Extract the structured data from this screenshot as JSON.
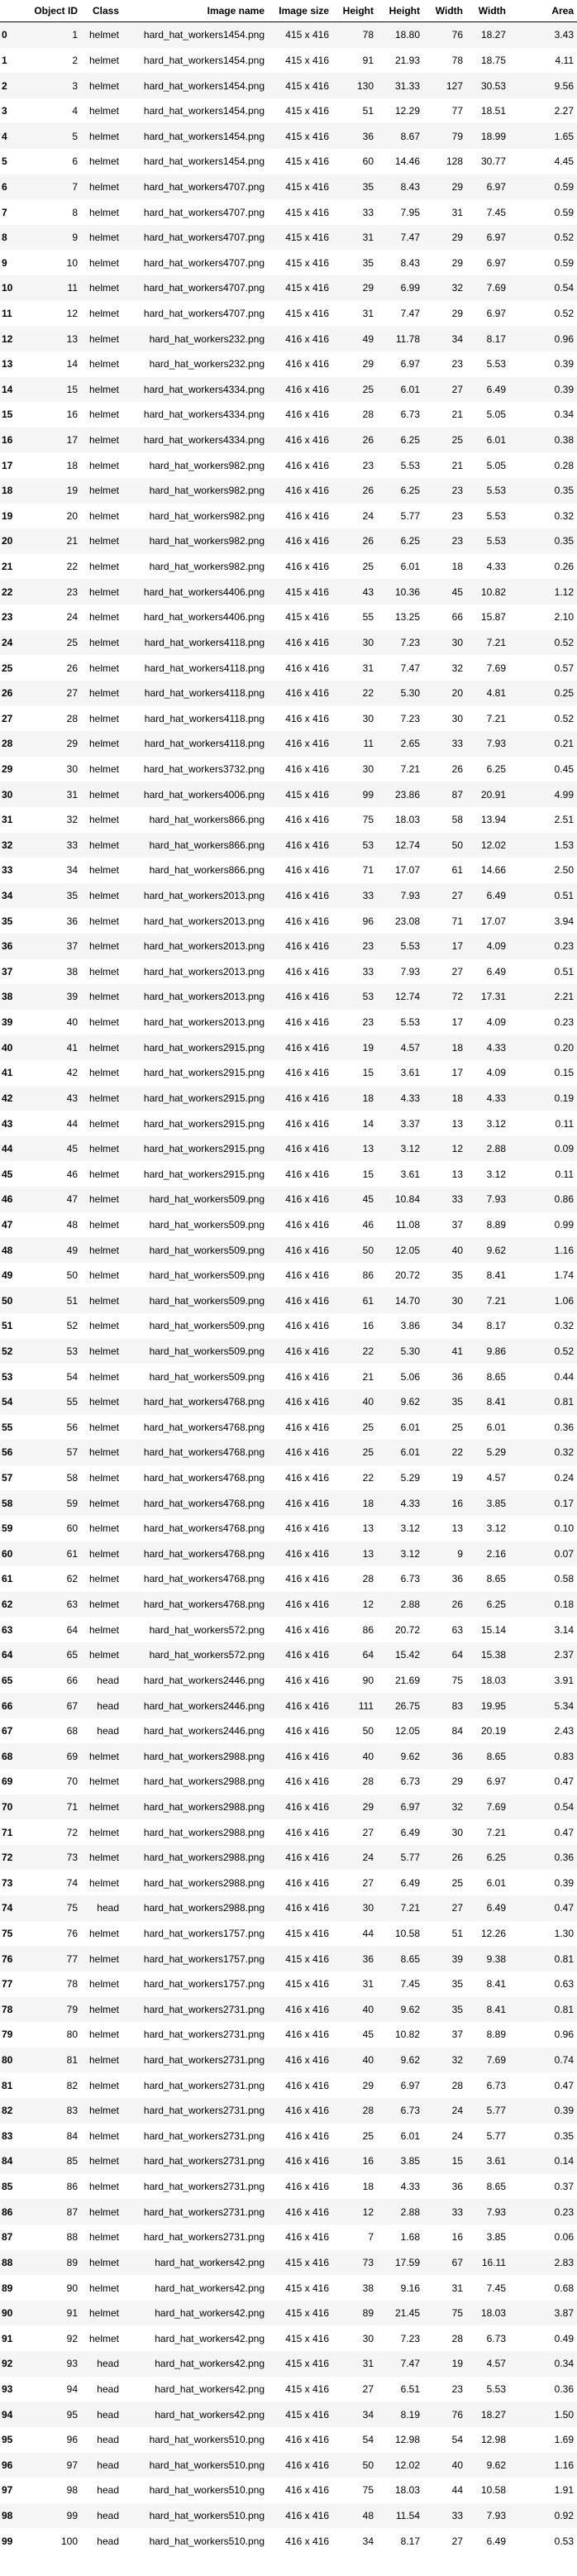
{
  "columns": [
    "",
    "Object ID",
    "Class",
    "Image name",
    "Image size",
    "Height",
    "Height",
    "Width",
    "Width",
    "Area"
  ],
  "rows": [
    [
      "0",
      "1",
      "helmet",
      "hard_hat_workers1454.png",
      "415 x 416",
      "78",
      "18.80",
      "76",
      "18.27",
      "3.43"
    ],
    [
      "1",
      "2",
      "helmet",
      "hard_hat_workers1454.png",
      "415 x 416",
      "91",
      "21.93",
      "78",
      "18.75",
      "4.11"
    ],
    [
      "2",
      "3",
      "helmet",
      "hard_hat_workers1454.png",
      "415 x 416",
      "130",
      "31.33",
      "127",
      "30.53",
      "9.56"
    ],
    [
      "3",
      "4",
      "helmet",
      "hard_hat_workers1454.png",
      "415 x 416",
      "51",
      "12.29",
      "77",
      "18.51",
      "2.27"
    ],
    [
      "4",
      "5",
      "helmet",
      "hard_hat_workers1454.png",
      "415 x 416",
      "36",
      "8.67",
      "79",
      "18.99",
      "1.65"
    ],
    [
      "5",
      "6",
      "helmet",
      "hard_hat_workers1454.png",
      "415 x 416",
      "60",
      "14.46",
      "128",
      "30.77",
      "4.45"
    ],
    [
      "6",
      "7",
      "helmet",
      "hard_hat_workers4707.png",
      "415 x 416",
      "35",
      "8.43",
      "29",
      "6.97",
      "0.59"
    ],
    [
      "7",
      "8",
      "helmet",
      "hard_hat_workers4707.png",
      "415 x 416",
      "33",
      "7.95",
      "31",
      "7.45",
      "0.59"
    ],
    [
      "8",
      "9",
      "helmet",
      "hard_hat_workers4707.png",
      "415 x 416",
      "31",
      "7.47",
      "29",
      "6.97",
      "0.52"
    ],
    [
      "9",
      "10",
      "helmet",
      "hard_hat_workers4707.png",
      "415 x 416",
      "35",
      "8.43",
      "29",
      "6.97",
      "0.59"
    ],
    [
      "10",
      "11",
      "helmet",
      "hard_hat_workers4707.png",
      "415 x 416",
      "29",
      "6.99",
      "32",
      "7.69",
      "0.54"
    ],
    [
      "11",
      "12",
      "helmet",
      "hard_hat_workers4707.png",
      "415 x 416",
      "31",
      "7.47",
      "29",
      "6.97",
      "0.52"
    ],
    [
      "12",
      "13",
      "helmet",
      "hard_hat_workers232.png",
      "416 x 416",
      "49",
      "11.78",
      "34",
      "8.17",
      "0.96"
    ],
    [
      "13",
      "14",
      "helmet",
      "hard_hat_workers232.png",
      "416 x 416",
      "29",
      "6.97",
      "23",
      "5.53",
      "0.39"
    ],
    [
      "14",
      "15",
      "helmet",
      "hard_hat_workers4334.png",
      "416 x 416",
      "25",
      "6.01",
      "27",
      "6.49",
      "0.39"
    ],
    [
      "15",
      "16",
      "helmet",
      "hard_hat_workers4334.png",
      "416 x 416",
      "28",
      "6.73",
      "21",
      "5.05",
      "0.34"
    ],
    [
      "16",
      "17",
      "helmet",
      "hard_hat_workers4334.png",
      "416 x 416",
      "26",
      "6.25",
      "25",
      "6.01",
      "0.38"
    ],
    [
      "17",
      "18",
      "helmet",
      "hard_hat_workers982.png",
      "416 x 416",
      "23",
      "5.53",
      "21",
      "5.05",
      "0.28"
    ],
    [
      "18",
      "19",
      "helmet",
      "hard_hat_workers982.png",
      "416 x 416",
      "26",
      "6.25",
      "23",
      "5.53",
      "0.35"
    ],
    [
      "19",
      "20",
      "helmet",
      "hard_hat_workers982.png",
      "416 x 416",
      "24",
      "5.77",
      "23",
      "5.53",
      "0.32"
    ],
    [
      "20",
      "21",
      "helmet",
      "hard_hat_workers982.png",
      "416 x 416",
      "26",
      "6.25",
      "23",
      "5.53",
      "0.35"
    ],
    [
      "21",
      "22",
      "helmet",
      "hard_hat_workers982.png",
      "416 x 416",
      "25",
      "6.01",
      "18",
      "4.33",
      "0.26"
    ],
    [
      "22",
      "23",
      "helmet",
      "hard_hat_workers4406.png",
      "415 x 416",
      "43",
      "10.36",
      "45",
      "10.82",
      "1.12"
    ],
    [
      "23",
      "24",
      "helmet",
      "hard_hat_workers4406.png",
      "415 x 416",
      "55",
      "13.25",
      "66",
      "15.87",
      "2.10"
    ],
    [
      "24",
      "25",
      "helmet",
      "hard_hat_workers4118.png",
      "416 x 416",
      "30",
      "7.23",
      "30",
      "7.21",
      "0.52"
    ],
    [
      "25",
      "26",
      "helmet",
      "hard_hat_workers4118.png",
      "416 x 416",
      "31",
      "7.47",
      "32",
      "7.69",
      "0.57"
    ],
    [
      "26",
      "27",
      "helmet",
      "hard_hat_workers4118.png",
      "416 x 416",
      "22",
      "5.30",
      "20",
      "4.81",
      "0.25"
    ],
    [
      "27",
      "28",
      "helmet",
      "hard_hat_workers4118.png",
      "416 x 416",
      "30",
      "7.23",
      "30",
      "7.21",
      "0.52"
    ],
    [
      "28",
      "29",
      "helmet",
      "hard_hat_workers4118.png",
      "416 x 416",
      "11",
      "2.65",
      "33",
      "7.93",
      "0.21"
    ],
    [
      "29",
      "30",
      "helmet",
      "hard_hat_workers3732.png",
      "416 x 416",
      "30",
      "7.21",
      "26",
      "6.25",
      "0.45"
    ],
    [
      "30",
      "31",
      "helmet",
      "hard_hat_workers4006.png",
      "415 x 416",
      "99",
      "23.86",
      "87",
      "20.91",
      "4.99"
    ],
    [
      "31",
      "32",
      "helmet",
      "hard_hat_workers866.png",
      "416 x 416",
      "75",
      "18.03",
      "58",
      "13.94",
      "2.51"
    ],
    [
      "32",
      "33",
      "helmet",
      "hard_hat_workers866.png",
      "416 x 416",
      "53",
      "12.74",
      "50",
      "12.02",
      "1.53"
    ],
    [
      "33",
      "34",
      "helmet",
      "hard_hat_workers866.png",
      "416 x 416",
      "71",
      "17.07",
      "61",
      "14.66",
      "2.50"
    ],
    [
      "34",
      "35",
      "helmet",
      "hard_hat_workers2013.png",
      "416 x 416",
      "33",
      "7.93",
      "27",
      "6.49",
      "0.51"
    ],
    [
      "35",
      "36",
      "helmet",
      "hard_hat_workers2013.png",
      "416 x 416",
      "96",
      "23.08",
      "71",
      "17.07",
      "3.94"
    ],
    [
      "36",
      "37",
      "helmet",
      "hard_hat_workers2013.png",
      "416 x 416",
      "23",
      "5.53",
      "17",
      "4.09",
      "0.23"
    ],
    [
      "37",
      "38",
      "helmet",
      "hard_hat_workers2013.png",
      "416 x 416",
      "33",
      "7.93",
      "27",
      "6.49",
      "0.51"
    ],
    [
      "38",
      "39",
      "helmet",
      "hard_hat_workers2013.png",
      "416 x 416",
      "53",
      "12.74",
      "72",
      "17.31",
      "2.21"
    ],
    [
      "39",
      "40",
      "helmet",
      "hard_hat_workers2013.png",
      "416 x 416",
      "23",
      "5.53",
      "17",
      "4.09",
      "0.23"
    ],
    [
      "40",
      "41",
      "helmet",
      "hard_hat_workers2915.png",
      "416 x 416",
      "19",
      "4.57",
      "18",
      "4.33",
      "0.20"
    ],
    [
      "41",
      "42",
      "helmet",
      "hard_hat_workers2915.png",
      "416 x 416",
      "15",
      "3.61",
      "17",
      "4.09",
      "0.15"
    ],
    [
      "42",
      "43",
      "helmet",
      "hard_hat_workers2915.png",
      "416 x 416",
      "18",
      "4.33",
      "18",
      "4.33",
      "0.19"
    ],
    [
      "43",
      "44",
      "helmet",
      "hard_hat_workers2915.png",
      "416 x 416",
      "14",
      "3.37",
      "13",
      "3.12",
      "0.11"
    ],
    [
      "44",
      "45",
      "helmet",
      "hard_hat_workers2915.png",
      "416 x 416",
      "13",
      "3.12",
      "12",
      "2.88",
      "0.09"
    ],
    [
      "45",
      "46",
      "helmet",
      "hard_hat_workers2915.png",
      "416 x 416",
      "15",
      "3.61",
      "13",
      "3.12",
      "0.11"
    ],
    [
      "46",
      "47",
      "helmet",
      "hard_hat_workers509.png",
      "416 x 416",
      "45",
      "10.84",
      "33",
      "7.93",
      "0.86"
    ],
    [
      "47",
      "48",
      "helmet",
      "hard_hat_workers509.png",
      "416 x 416",
      "46",
      "11.08",
      "37",
      "8.89",
      "0.99"
    ],
    [
      "48",
      "49",
      "helmet",
      "hard_hat_workers509.png",
      "416 x 416",
      "50",
      "12.05",
      "40",
      "9.62",
      "1.16"
    ],
    [
      "49",
      "50",
      "helmet",
      "hard_hat_workers509.png",
      "416 x 416",
      "86",
      "20.72",
      "35",
      "8.41",
      "1.74"
    ],
    [
      "50",
      "51",
      "helmet",
      "hard_hat_workers509.png",
      "416 x 416",
      "61",
      "14.70",
      "30",
      "7.21",
      "1.06"
    ],
    [
      "51",
      "52",
      "helmet",
      "hard_hat_workers509.png",
      "416 x 416",
      "16",
      "3.86",
      "34",
      "8.17",
      "0.32"
    ],
    [
      "52",
      "53",
      "helmet",
      "hard_hat_workers509.png",
      "416 x 416",
      "22",
      "5.30",
      "41",
      "9.86",
      "0.52"
    ],
    [
      "53",
      "54",
      "helmet",
      "hard_hat_workers509.png",
      "416 x 416",
      "21",
      "5.06",
      "36",
      "8.65",
      "0.44"
    ],
    [
      "54",
      "55",
      "helmet",
      "hard_hat_workers4768.png",
      "416 x 416",
      "40",
      "9.62",
      "35",
      "8.41",
      "0.81"
    ],
    [
      "55",
      "56",
      "helmet",
      "hard_hat_workers4768.png",
      "416 x 416",
      "25",
      "6.01",
      "25",
      "6.01",
      "0.36"
    ],
    [
      "56",
      "57",
      "helmet",
      "hard_hat_workers4768.png",
      "416 x 416",
      "25",
      "6.01",
      "22",
      "5.29",
      "0.32"
    ],
    [
      "57",
      "58",
      "helmet",
      "hard_hat_workers4768.png",
      "416 x 416",
      "22",
      "5.29",
      "19",
      "4.57",
      "0.24"
    ],
    [
      "58",
      "59",
      "helmet",
      "hard_hat_workers4768.png",
      "416 x 416",
      "18",
      "4.33",
      "16",
      "3.85",
      "0.17"
    ],
    [
      "59",
      "60",
      "helmet",
      "hard_hat_workers4768.png",
      "416 x 416",
      "13",
      "3.12",
      "13",
      "3.12",
      "0.10"
    ],
    [
      "60",
      "61",
      "helmet",
      "hard_hat_workers4768.png",
      "416 x 416",
      "13",
      "3.12",
      "9",
      "2.16",
      "0.07"
    ],
    [
      "61",
      "62",
      "helmet",
      "hard_hat_workers4768.png",
      "416 x 416",
      "28",
      "6.73",
      "36",
      "8.65",
      "0.58"
    ],
    [
      "62",
      "63",
      "helmet",
      "hard_hat_workers4768.png",
      "416 x 416",
      "12",
      "2.88",
      "26",
      "6.25",
      "0.18"
    ],
    [
      "63",
      "64",
      "helmet",
      "hard_hat_workers572.png",
      "416 x 416",
      "86",
      "20.72",
      "63",
      "15.14",
      "3.14"
    ],
    [
      "64",
      "65",
      "helmet",
      "hard_hat_workers572.png",
      "416 x 416",
      "64",
      "15.42",
      "64",
      "15.38",
      "2.37"
    ],
    [
      "65",
      "66",
      "head",
      "hard_hat_workers2446.png",
      "416 x 416",
      "90",
      "21.69",
      "75",
      "18.03",
      "3.91"
    ],
    [
      "66",
      "67",
      "head",
      "hard_hat_workers2446.png",
      "416 x 416",
      "111",
      "26.75",
      "83",
      "19.95",
      "5.34"
    ],
    [
      "67",
      "68",
      "head",
      "hard_hat_workers2446.png",
      "416 x 416",
      "50",
      "12.05",
      "84",
      "20.19",
      "2.43"
    ],
    [
      "68",
      "69",
      "helmet",
      "hard_hat_workers2988.png",
      "416 x 416",
      "40",
      "9.62",
      "36",
      "8.65",
      "0.83"
    ],
    [
      "69",
      "70",
      "helmet",
      "hard_hat_workers2988.png",
      "416 x 416",
      "28",
      "6.73",
      "29",
      "6.97",
      "0.47"
    ],
    [
      "70",
      "71",
      "helmet",
      "hard_hat_workers2988.png",
      "416 x 416",
      "29",
      "6.97",
      "32",
      "7.69",
      "0.54"
    ],
    [
      "71",
      "72",
      "helmet",
      "hard_hat_workers2988.png",
      "416 x 416",
      "27",
      "6.49",
      "30",
      "7.21",
      "0.47"
    ],
    [
      "72",
      "73",
      "helmet",
      "hard_hat_workers2988.png",
      "416 x 416",
      "24",
      "5.77",
      "26",
      "6.25",
      "0.36"
    ],
    [
      "73",
      "74",
      "helmet",
      "hard_hat_workers2988.png",
      "416 x 416",
      "27",
      "6.49",
      "25",
      "6.01",
      "0.39"
    ],
    [
      "74",
      "75",
      "head",
      "hard_hat_workers2988.png",
      "416 x 416",
      "30",
      "7.21",
      "27",
      "6.49",
      "0.47"
    ],
    [
      "75",
      "76",
      "helmet",
      "hard_hat_workers1757.png",
      "415 x 416",
      "44",
      "10.58",
      "51",
      "12.26",
      "1.30"
    ],
    [
      "76",
      "77",
      "helmet",
      "hard_hat_workers1757.png",
      "415 x 416",
      "36",
      "8.65",
      "39",
      "9.38",
      "0.81"
    ],
    [
      "77",
      "78",
      "helmet",
      "hard_hat_workers1757.png",
      "415 x 416",
      "31",
      "7.45",
      "35",
      "8.41",
      "0.63"
    ],
    [
      "78",
      "79",
      "helmet",
      "hard_hat_workers2731.png",
      "416 x 416",
      "40",
      "9.62",
      "35",
      "8.41",
      "0.81"
    ],
    [
      "79",
      "80",
      "helmet",
      "hard_hat_workers2731.png",
      "416 x 416",
      "45",
      "10.82",
      "37",
      "8.89",
      "0.96"
    ],
    [
      "80",
      "81",
      "helmet",
      "hard_hat_workers2731.png",
      "416 x 416",
      "40",
      "9.62",
      "32",
      "7.69",
      "0.74"
    ],
    [
      "81",
      "82",
      "helmet",
      "hard_hat_workers2731.png",
      "416 x 416",
      "29",
      "6.97",
      "28",
      "6.73",
      "0.47"
    ],
    [
      "82",
      "83",
      "helmet",
      "hard_hat_workers2731.png",
      "416 x 416",
      "28",
      "6.73",
      "24",
      "5.77",
      "0.39"
    ],
    [
      "83",
      "84",
      "helmet",
      "hard_hat_workers2731.png",
      "416 x 416",
      "25",
      "6.01",
      "24",
      "5.77",
      "0.35"
    ],
    [
      "84",
      "85",
      "helmet",
      "hard_hat_workers2731.png",
      "416 x 416",
      "16",
      "3.85",
      "15",
      "3.61",
      "0.14"
    ],
    [
      "85",
      "86",
      "helmet",
      "hard_hat_workers2731.png",
      "416 x 416",
      "18",
      "4.33",
      "36",
      "8.65",
      "0.37"
    ],
    [
      "86",
      "87",
      "helmet",
      "hard_hat_workers2731.png",
      "416 x 416",
      "12",
      "2.88",
      "33",
      "7.93",
      "0.23"
    ],
    [
      "87",
      "88",
      "helmet",
      "hard_hat_workers2731.png",
      "416 x 416",
      "7",
      "1.68",
      "16",
      "3.85",
      "0.06"
    ],
    [
      "88",
      "89",
      "helmet",
      "hard_hat_workers42.png",
      "415 x 416",
      "73",
      "17.59",
      "67",
      "16.11",
      "2.83"
    ],
    [
      "89",
      "90",
      "helmet",
      "hard_hat_workers42.png",
      "415 x 416",
      "38",
      "9.16",
      "31",
      "7.45",
      "0.68"
    ],
    [
      "90",
      "91",
      "helmet",
      "hard_hat_workers42.png",
      "415 x 416",
      "89",
      "21.45",
      "75",
      "18.03",
      "3.87"
    ],
    [
      "91",
      "92",
      "helmet",
      "hard_hat_workers42.png",
      "415 x 416",
      "30",
      "7.23",
      "28",
      "6.73",
      "0.49"
    ],
    [
      "92",
      "93",
      "head",
      "hard_hat_workers42.png",
      "415 x 416",
      "31",
      "7.47",
      "19",
      "4.57",
      "0.34"
    ],
    [
      "93",
      "94",
      "head",
      "hard_hat_workers42.png",
      "415 x 416",
      "27",
      "6.51",
      "23",
      "5.53",
      "0.36"
    ],
    [
      "94",
      "95",
      "head",
      "hard_hat_workers42.png",
      "415 x 416",
      "34",
      "8.19",
      "76",
      "18.27",
      "1.50"
    ],
    [
      "95",
      "96",
      "head",
      "hard_hat_workers510.png",
      "416 x 416",
      "54",
      "12.98",
      "54",
      "12.98",
      "1.69"
    ],
    [
      "96",
      "97",
      "head",
      "hard_hat_workers510.png",
      "416 x 416",
      "50",
      "12.02",
      "40",
      "9.62",
      "1.16"
    ],
    [
      "97",
      "98",
      "head",
      "hard_hat_workers510.png",
      "416 x 416",
      "75",
      "18.03",
      "44",
      "10.58",
      "1.91"
    ],
    [
      "98",
      "99",
      "head",
      "hard_hat_workers510.png",
      "416 x 416",
      "48",
      "11.54",
      "33",
      "7.93",
      "0.92"
    ],
    [
      "99",
      "100",
      "head",
      "hard_hat_workers510.png",
      "416 x 416",
      "34",
      "8.17",
      "27",
      "6.49",
      "0.53"
    ]
  ]
}
